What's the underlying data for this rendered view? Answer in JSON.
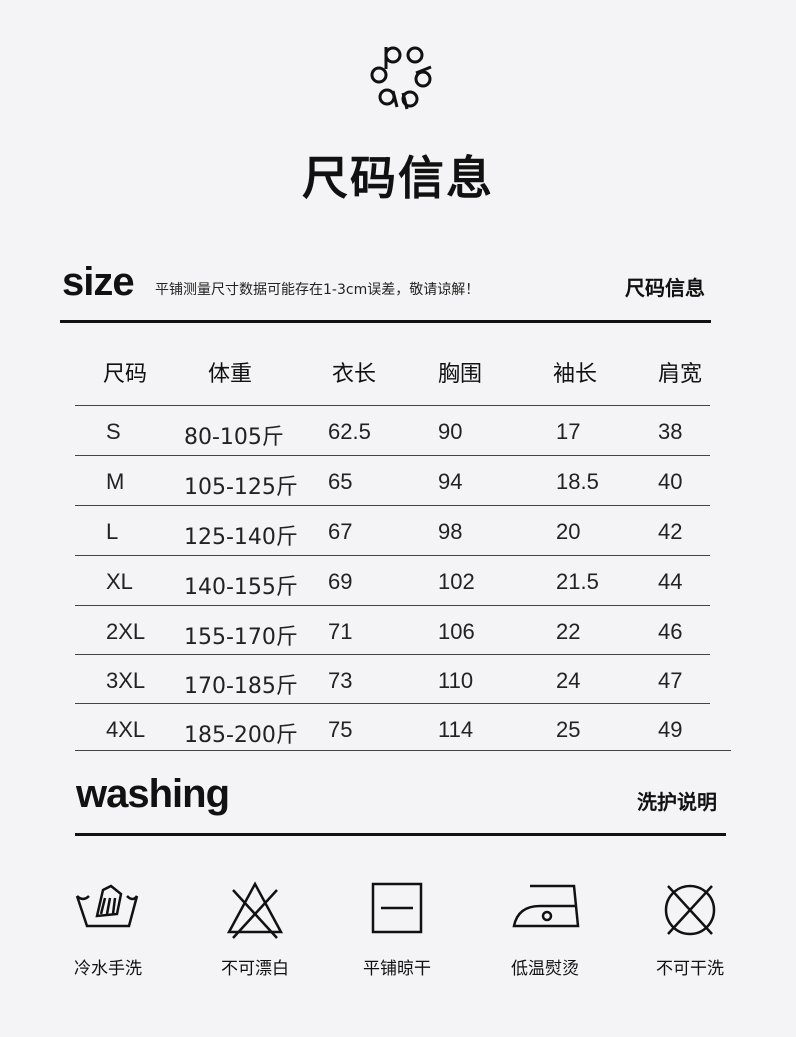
{
  "title": "尺码信息",
  "size_section": {
    "heading": "size",
    "note": "平铺测量尺寸数据可能存在1-3cm误差，敬请谅解！",
    "label": "尺码信息"
  },
  "table": {
    "headers": [
      "尺码",
      "体重",
      "衣长",
      "胸围",
      "袖长",
      "肩宽"
    ],
    "rows": [
      [
        "S",
        "80-105斤",
        "62.5",
        "90",
        "17",
        "38"
      ],
      [
        "M",
        "105-125斤",
        "65",
        "94",
        "18.5",
        "40"
      ],
      [
        "L",
        "125-140斤",
        "67",
        "98",
        "20",
        "42"
      ],
      [
        "XL",
        "140-155斤",
        "69",
        "102",
        "21.5",
        "44"
      ],
      [
        "2XL",
        "155-170斤",
        "71",
        "106",
        "22",
        "46"
      ],
      [
        "3XL",
        "170-185斤",
        "73",
        "110",
        "24",
        "47"
      ],
      [
        "4XL",
        "185-200斤",
        "75",
        "114",
        "25",
        "49"
      ]
    ]
  },
  "washing_section": {
    "heading": "washing",
    "label": "洗护说明"
  },
  "care": [
    {
      "icon": "hand-wash-icon",
      "label": "冷水手洗"
    },
    {
      "icon": "no-bleach-icon",
      "label": "不可漂白"
    },
    {
      "icon": "dry-flat-icon",
      "label": "平铺晾干"
    },
    {
      "icon": "iron-low-icon",
      "label": "低温熨烫"
    },
    {
      "icon": "no-dry-clean-icon",
      "label": "不可干洗"
    }
  ]
}
